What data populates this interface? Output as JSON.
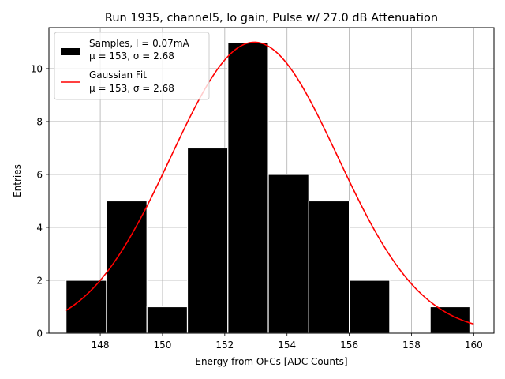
{
  "chart_data": {
    "type": "bar",
    "title": "Run 1935, channel5, lo gain, Pulse w/ 27.0 dB Attenuation",
    "xlabel": "Energy from OFCs [ADC Counts]",
    "ylabel": "Entries",
    "xlim": [
      146.35,
      160.65
    ],
    "ylim": [
      0,
      11.55
    ],
    "xticks": [
      148,
      150,
      152,
      154,
      156,
      158,
      160
    ],
    "yticks": [
      0,
      2,
      4,
      6,
      8,
      10
    ],
    "grid": true,
    "legend_position": "top-left",
    "histogram": {
      "name": "Samples, I = 0.07mA",
      "stats_label": "μ = 153, σ = 2.68",
      "bin_edges": [
        146.9,
        148.2,
        149.5,
        150.8,
        152.1,
        153.4,
        154.7,
        156.0,
        157.3,
        158.6,
        159.9
      ],
      "counts": [
        2,
        5,
        1,
        7,
        11,
        6,
        5,
        2,
        0,
        1
      ],
      "color": "#000000",
      "edgecolor": "#ffffff"
    },
    "fit": {
      "name": "Gaussian Fit",
      "stats_label": "μ = 153, σ = 2.68",
      "mu": 152.95,
      "sigma": 2.68,
      "amplitude": 11.0,
      "x_range": [
        146.9,
        160.0
      ],
      "color": "#ff0000"
    }
  }
}
